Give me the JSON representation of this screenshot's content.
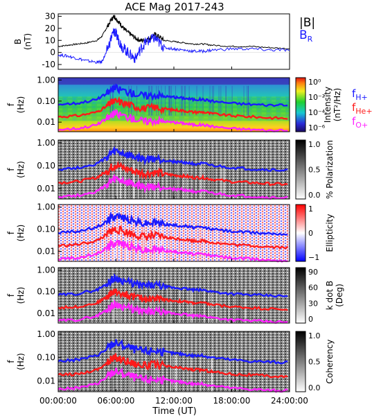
{
  "title": "ACE Mag 2017-243",
  "x_axis": {
    "label": "Time (UT)",
    "ticks": [
      "00:00:00",
      "06:00:00",
      "12:00:00",
      "18:00:00",
      "24:00:00"
    ],
    "range_hours": [
      0,
      24
    ]
  },
  "colors": {
    "B_total": "#000000",
    "B_R": "#1a1aff",
    "f_H": "#1a1aff",
    "f_He": "#ff1a1a",
    "f_O": "#ff22ff"
  },
  "legend_B": {
    "total": "|B|",
    "radial": "B",
    "radial_sub": "R"
  },
  "legend_f": [
    {
      "base": "f",
      "sub": "H+",
      "color": "#1a1aff"
    },
    {
      "base": "f",
      "sub": "He+",
      "color": "#ff1a1a"
    },
    {
      "base": "f",
      "sub": "O+",
      "color": "#ff22ff"
    }
  ],
  "chart_data": [
    {
      "type": "line",
      "ylabel": "B",
      "yunit": "(nT)",
      "ylim": [
        -14,
        32
      ],
      "yticks": [
        "30",
        "20",
        "10",
        "0",
        "-10"
      ],
      "x_hours": [
        0,
        1,
        2,
        3,
        4,
        4.5,
        5,
        5.5,
        5.8,
        6,
        6.3,
        6.6,
        7,
        7.5,
        8,
        8.5,
        9,
        9.5,
        10,
        10.5,
        11,
        12,
        13,
        14,
        15,
        16,
        18,
        20,
        22,
        24
      ],
      "series": [
        {
          "name": "|B|",
          "values": [
            5,
            6,
            7,
            8,
            10,
            13,
            20,
            27,
            30,
            28,
            25,
            22,
            18,
            15,
            12,
            10,
            10,
            12,
            15,
            13,
            10,
            9,
            8,
            7,
            7,
            6,
            5,
            5,
            4,
            3
          ]
        },
        {
          "name": "B_R",
          "values": [
            -2,
            -3,
            -5,
            -7,
            -8,
            -8,
            0,
            12,
            18,
            15,
            10,
            5,
            2,
            -2,
            -5,
            2,
            8,
            10,
            12,
            8,
            4,
            3,
            2,
            1,
            1,
            2,
            3,
            3,
            2,
            2
          ]
        }
      ]
    },
    {
      "type": "heatmap",
      "ylabel": "f",
      "yunit": "(Hz)",
      "yticks": [
        "1.00",
        "0.10",
        "0.01"
      ],
      "colorbar": {
        "label": "Intensity",
        "unit": "(nT²/Hz)",
        "ticks": [
          "10⁰",
          "10⁻²",
          "10⁻⁴",
          "10⁻⁶"
        ]
      },
      "cyclotron_lines": true
    },
    {
      "type": "heatmap",
      "ylabel": "f",
      "yunit": "(Hz)",
      "yticks": [
        "1.00",
        "0.10",
        "0.01"
      ],
      "colorbar": {
        "label": "% Polarization",
        "unit": "",
        "ticks": [
          "1.0",
          "0.5",
          "0.0"
        ]
      },
      "cyclotron_lines": true
    },
    {
      "type": "heatmap",
      "ylabel": "f",
      "yunit": "(Hz)",
      "yticks": [
        "1.00",
        "0.10",
        "0.01"
      ],
      "colorbar": {
        "label": "Ellipticity",
        "unit": "",
        "ticks": [
          "1",
          "0",
          "−1"
        ]
      },
      "cyclotron_lines": true
    },
    {
      "type": "heatmap",
      "ylabel": "f",
      "yunit": "(Hz)",
      "yticks": [
        "1.00",
        "0.10",
        "0.01"
      ],
      "colorbar": {
        "label": "k dot B",
        "unit": "(Deg)",
        "ticks": [
          "90",
          "60",
          "30",
          "0"
        ]
      },
      "cyclotron_lines": true
    },
    {
      "type": "heatmap",
      "ylabel": "f",
      "yunit": "(Hz)",
      "yticks": [
        "1.00",
        "0.10",
        "0.01"
      ],
      "colorbar": {
        "label": "Coherency",
        "unit": "",
        "ticks": [
          "1.0",
          "0.5",
          "0.0"
        ]
      },
      "cyclotron_lines": true
    }
  ],
  "cyclotron_frequencies": {
    "x_hours": [
      0,
      2,
      4,
      5,
      5.5,
      6,
      7,
      8,
      9,
      10,
      11,
      12,
      13,
      14,
      15,
      16,
      18,
      20,
      22,
      24
    ],
    "f_H": [
      0.07,
      0.08,
      0.12,
      0.22,
      0.35,
      0.42,
      0.3,
      0.22,
      0.18,
      0.2,
      0.17,
      0.15,
      0.14,
      0.12,
      0.12,
      0.1,
      0.08,
      0.07,
      0.065,
      0.06
    ],
    "f_He": [
      0.018,
      0.02,
      0.03,
      0.055,
      0.085,
      0.1,
      0.075,
      0.055,
      0.045,
      0.05,
      0.043,
      0.038,
      0.035,
      0.03,
      0.03,
      0.025,
      0.02,
      0.018,
      0.016,
      0.015
    ],
    "f_O": [
      0.0045,
      0.005,
      0.0075,
      0.014,
      0.021,
      0.026,
      0.019,
      0.014,
      0.011,
      0.012,
      0.011,
      0.0095,
      0.009,
      0.0075,
      0.0075,
      0.0063,
      0.005,
      0.0045,
      0.004,
      0.0038
    ]
  }
}
